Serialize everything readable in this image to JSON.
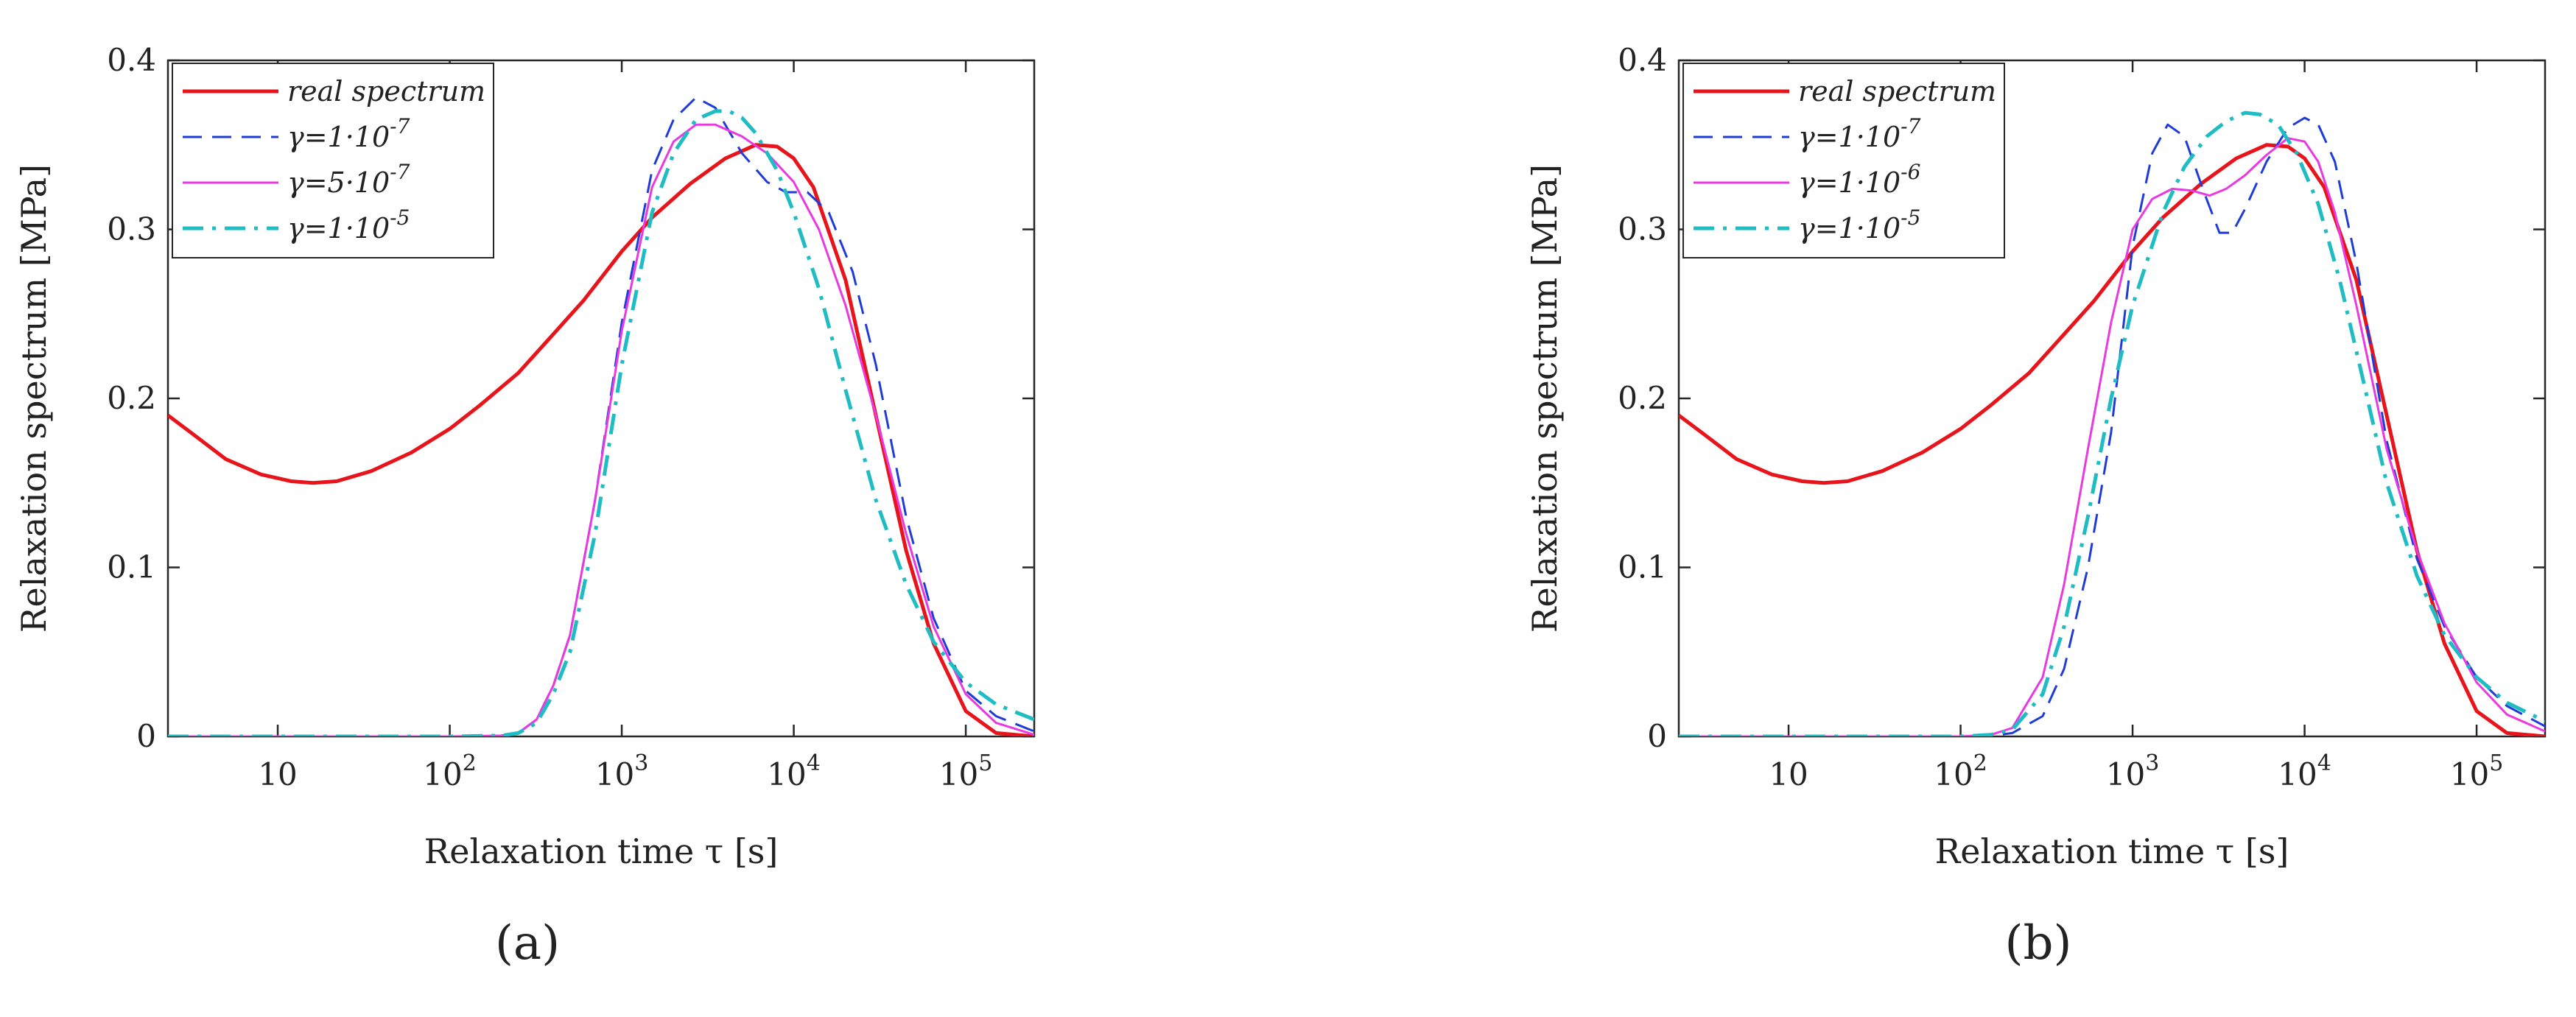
{
  "chart_data": [
    {
      "type": "line",
      "panel_label": "(a)",
      "xlabel": "Relaxation time τ [s]",
      "ylabel": "Relaxation spectrum  [MPa]",
      "xscale": "log",
      "xlim": [
        2.3,
        250000
      ],
      "ylim": [
        0,
        0.4
      ],
      "xticks": [
        {
          "v": 10,
          "label": "10"
        },
        {
          "v": 100,
          "label": "10",
          "sup": "2"
        },
        {
          "v": 1000,
          "label": "10",
          "sup": "3"
        },
        {
          "v": 10000,
          "label": "10",
          "sup": "4"
        },
        {
          "v": 100000,
          "label": "10",
          "sup": "5"
        }
      ],
      "yticks": [
        {
          "v": 0,
          "label": "0"
        },
        {
          "v": 0.1,
          "label": "0.1"
        },
        {
          "v": 0.2,
          "label": "0.2"
        },
        {
          "v": 0.3,
          "label": "0.3"
        },
        {
          "v": 0.4,
          "label": "0.4"
        }
      ],
      "legend_position": "top-left",
      "series": [
        {
          "name": "real spectrum",
          "legend": "real spectrum",
          "color": "#e8141c",
          "style": "solid",
          "width": 5,
          "x": [
            2.3,
            3.3,
            5,
            8,
            12,
            16,
            22,
            35,
            60,
            100,
            150,
            250,
            400,
            600,
            1000,
            1500,
            2500,
            4000,
            6000,
            8000,
            10000,
            13000,
            20000,
            30000,
            45000,
            65000,
            100000,
            150000,
            250000
          ],
          "y": [
            0.19,
            0.178,
            0.164,
            0.155,
            0.151,
            0.15,
            0.151,
            0.157,
            0.168,
            0.182,
            0.196,
            0.215,
            0.238,
            0.258,
            0.287,
            0.307,
            0.327,
            0.342,
            0.35,
            0.349,
            0.342,
            0.325,
            0.27,
            0.19,
            0.11,
            0.055,
            0.015,
            0.002,
            0.0
          ]
        },
        {
          "name": "gamma 1e-7",
          "legend": "γ=1·10",
          "legend_exp": "-7",
          "color": "#1f3cd8",
          "style": "dashed",
          "width": 3,
          "x": [
            2.3,
            100,
            200,
            250,
            320,
            400,
            500,
            700,
            1000,
            1500,
            2000,
            2700,
            3500,
            5000,
            7000,
            9000,
            12000,
            16000,
            22000,
            30000,
            45000,
            65000,
            100000,
            150000,
            250000
          ],
          "y": [
            0.0,
            0.0,
            0.0005,
            0.002,
            0.01,
            0.03,
            0.06,
            0.14,
            0.245,
            0.335,
            0.365,
            0.378,
            0.372,
            0.345,
            0.328,
            0.322,
            0.322,
            0.31,
            0.275,
            0.22,
            0.13,
            0.07,
            0.027,
            0.012,
            0.003
          ]
        },
        {
          "name": "gamma 5e-7",
          "legend": "γ=5·10",
          "legend_exp": "-7",
          "color": "#e83ae0",
          "style": "solid",
          "width": 3,
          "x": [
            2.3,
            100,
            200,
            250,
            320,
            400,
            500,
            700,
            1000,
            1500,
            2000,
            2700,
            3500,
            5000,
            7000,
            10000,
            14000,
            20000,
            30000,
            45000,
            65000,
            100000,
            150000,
            250000
          ],
          "y": [
            0.0,
            0.0,
            0.0005,
            0.002,
            0.01,
            0.03,
            0.06,
            0.14,
            0.24,
            0.325,
            0.352,
            0.362,
            0.362,
            0.355,
            0.345,
            0.328,
            0.3,
            0.255,
            0.19,
            0.12,
            0.065,
            0.025,
            0.008,
            0.001
          ]
        },
        {
          "name": "gamma 1e-5",
          "legend": "γ=1·10",
          "legend_exp": "-5",
          "color": "#1fbcc4",
          "style": "dashdot",
          "width": 5,
          "x": [
            2.3,
            100,
            200,
            250,
            320,
            400,
            500,
            700,
            1000,
            1500,
            2000,
            2700,
            3500,
            4200,
            5000,
            6000,
            8000,
            10000,
            14000,
            20000,
            30000,
            45000,
            65000,
            100000,
            150000,
            250000
          ],
          "y": [
            0.0,
            0.0,
            0.0005,
            0.002,
            0.008,
            0.025,
            0.05,
            0.12,
            0.22,
            0.31,
            0.345,
            0.365,
            0.37,
            0.37,
            0.366,
            0.357,
            0.335,
            0.31,
            0.265,
            0.205,
            0.14,
            0.09,
            0.056,
            0.032,
            0.019,
            0.01
          ]
        }
      ]
    },
    {
      "type": "line",
      "panel_label": "(b)",
      "xlabel": "Relaxation time τ [s]",
      "ylabel": "Relaxation spectrum  [MPa]",
      "xscale": "log",
      "xlim": [
        2.3,
        250000
      ],
      "ylim": [
        0,
        0.4
      ],
      "xticks": [
        {
          "v": 10,
          "label": "10"
        },
        {
          "v": 100,
          "label": "10",
          "sup": "2"
        },
        {
          "v": 1000,
          "label": "10",
          "sup": "3"
        },
        {
          "v": 10000,
          "label": "10",
          "sup": "4"
        },
        {
          "v": 100000,
          "label": "10",
          "sup": "5"
        }
      ],
      "yticks": [
        {
          "v": 0,
          "label": "0"
        },
        {
          "v": 0.1,
          "label": "0.1"
        },
        {
          "v": 0.2,
          "label": "0.2"
        },
        {
          "v": 0.3,
          "label": "0.3"
        },
        {
          "v": 0.4,
          "label": "0.4"
        }
      ],
      "legend_position": "top-left",
      "series": [
        {
          "name": "real spectrum",
          "legend": "real spectrum",
          "color": "#e8141c",
          "style": "solid",
          "width": 5,
          "x": [
            2.3,
            3.3,
            5,
            8,
            12,
            16,
            22,
            35,
            60,
            100,
            150,
            250,
            400,
            600,
            1000,
            1500,
            2500,
            4000,
            6000,
            8000,
            10000,
            13000,
            20000,
            30000,
            45000,
            65000,
            100000,
            150000,
            250000
          ],
          "y": [
            0.19,
            0.178,
            0.164,
            0.155,
            0.151,
            0.15,
            0.151,
            0.157,
            0.168,
            0.182,
            0.196,
            0.215,
            0.238,
            0.258,
            0.287,
            0.307,
            0.327,
            0.342,
            0.35,
            0.349,
            0.342,
            0.325,
            0.27,
            0.19,
            0.11,
            0.055,
            0.015,
            0.002,
            0.0
          ]
        },
        {
          "name": "gamma 1e-7",
          "legend": "γ=1·10",
          "legend_exp": "-7",
          "color": "#1f3cd8",
          "style": "dashed",
          "width": 3,
          "x": [
            2.3,
            100,
            150,
            200,
            300,
            400,
            550,
            750,
            1000,
            1300,
            1600,
            2000,
            2600,
            3200,
            3800,
            4500,
            6000,
            8000,
            10000,
            12000,
            15000,
            20000,
            30000,
            45000,
            65000,
            100000,
            150000,
            250000
          ],
          "y": [
            0.0,
            0.0,
            0.0003,
            0.002,
            0.012,
            0.04,
            0.1,
            0.18,
            0.29,
            0.345,
            0.362,
            0.355,
            0.322,
            0.298,
            0.298,
            0.312,
            0.34,
            0.36,
            0.366,
            0.362,
            0.34,
            0.28,
            0.175,
            0.105,
            0.065,
            0.035,
            0.018,
            0.006
          ]
        },
        {
          "name": "gamma 1e-6",
          "legend": "γ=1·10",
          "legend_exp": "-6",
          "color": "#e83ae0",
          "style": "solid",
          "width": 3,
          "x": [
            2.3,
            100,
            150,
            200,
            300,
            400,
            550,
            750,
            1000,
            1300,
            1700,
            2200,
            2800,
            3500,
            4500,
            6000,
            8000,
            10000,
            12000,
            15000,
            20000,
            30000,
            45000,
            65000,
            100000,
            150000,
            250000
          ],
          "y": [
            0.0,
            0.0,
            0.001,
            0.005,
            0.035,
            0.09,
            0.17,
            0.245,
            0.3,
            0.318,
            0.324,
            0.323,
            0.32,
            0.324,
            0.332,
            0.344,
            0.354,
            0.352,
            0.34,
            0.31,
            0.255,
            0.17,
            0.11,
            0.067,
            0.032,
            0.013,
            0.003
          ]
        },
        {
          "name": "gamma 1e-5",
          "legend": "γ=1·10",
          "legend_exp": "-5",
          "color": "#1fbcc4",
          "style": "dashdot",
          "width": 5,
          "x": [
            2.3,
            100,
            150,
            200,
            300,
            400,
            550,
            750,
            1000,
            1500,
            2000,
            2700,
            3500,
            4500,
            5500,
            7000,
            9000,
            12000,
            16000,
            22000,
            30000,
            45000,
            65000,
            100000,
            150000,
            250000
          ],
          "y": [
            0.0,
            0.0,
            0.001,
            0.004,
            0.025,
            0.065,
            0.13,
            0.2,
            0.255,
            0.31,
            0.337,
            0.355,
            0.364,
            0.369,
            0.368,
            0.362,
            0.345,
            0.315,
            0.27,
            0.21,
            0.15,
            0.095,
            0.06,
            0.035,
            0.02,
            0.009
          ]
        }
      ]
    }
  ]
}
